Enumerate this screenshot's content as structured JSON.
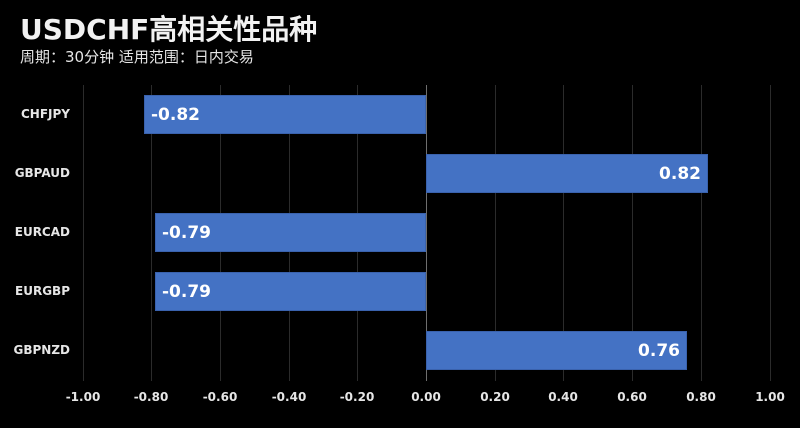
{
  "header": {
    "title": "USDCHF高相关性品种",
    "subtitle": "周期：30分钟  适用范围：日内交易"
  },
  "colors": {
    "background": "#000000",
    "bar": "#4472c4",
    "grid": "#2b2b2b",
    "text": "#e6e6e6"
  },
  "chart_data": {
    "type": "bar",
    "orientation": "horizontal",
    "title": "USDCHF高相关性品种",
    "subtitle": "周期：30分钟  适用范围：日内交易",
    "categories": [
      "CHFJPY",
      "GBPAUD",
      "EURCAD",
      "EURGBP",
      "GBPNZD"
    ],
    "values": [
      -0.82,
      0.82,
      -0.79,
      -0.79,
      0.76
    ],
    "value_labels": [
      "-0.82",
      "0.82",
      "-0.79",
      "-0.79",
      "0.76"
    ],
    "xlabel": "",
    "ylabel": "",
    "xlim": [
      -1.0,
      1.0
    ],
    "x_ticks": [
      "-1.00",
      "-0.80",
      "-0.60",
      "-0.40",
      "-0.20",
      "0.00",
      "0.20",
      "0.40",
      "0.60",
      "0.80",
      "1.00"
    ],
    "grid": true,
    "legend": null
  }
}
